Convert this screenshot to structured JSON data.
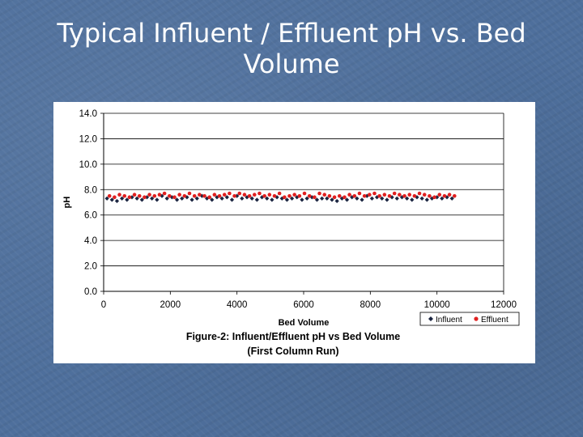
{
  "slide": {
    "title_line1": "Typical Influent / Effluent pH vs. Bed",
    "title_line2": "Volume"
  },
  "chart_data": {
    "type": "scatter",
    "xlabel": "Bed Volume",
    "ylabel": "pH",
    "xlim": [
      0,
      12000
    ],
    "ylim": [
      0,
      14
    ],
    "xticks": [
      "0",
      "2000",
      "4000",
      "6000",
      "8000",
      "10000",
      "12000"
    ],
    "yticks": [
      "0.0",
      "2.0",
      "4.0",
      "6.0",
      "8.0",
      "10.0",
      "12.0",
      "14.0"
    ],
    "grid": "horizontal",
    "legend_position": "bottom-right",
    "caption_line1": "Figure-2: Influent/Effluent pH vs Bed Volume",
    "caption_line2": "(First Column Run)",
    "series": [
      {
        "name": "Influent",
        "color": "#1a2440",
        "marker": "diamond",
        "x": [
          100,
          250,
          400,
          550,
          700,
          850,
          1000,
          1150,
          1300,
          1450,
          1600,
          1750,
          1900,
          2050,
          2200,
          2350,
          2500,
          2650,
          2800,
          2950,
          3100,
          3250,
          3400,
          3550,
          3700,
          3850,
          4000,
          4150,
          4300,
          4450,
          4600,
          4750,
          4900,
          5050,
          5200,
          5350,
          5500,
          5650,
          5800,
          5950,
          6100,
          6250,
          6400,
          6550,
          6700,
          6850,
          7000,
          7150,
          7300,
          7450,
          7600,
          7750,
          7900,
          8050,
          8200,
          8350,
          8500,
          8650,
          8800,
          8950,
          9100,
          9250,
          9400,
          9550,
          9700,
          9850,
          10000,
          10150,
          10300,
          10450
        ],
        "y": [
          7.3,
          7.2,
          7.1,
          7.3,
          7.2,
          7.4,
          7.3,
          7.2,
          7.4,
          7.3,
          7.2,
          7.5,
          7.3,
          7.4,
          7.2,
          7.3,
          7.4,
          7.2,
          7.3,
          7.5,
          7.3,
          7.2,
          7.4,
          7.3,
          7.4,
          7.2,
          7.5,
          7.3,
          7.4,
          7.3,
          7.2,
          7.4,
          7.3,
          7.2,
          7.4,
          7.3,
          7.2,
          7.3,
          7.4,
          7.2,
          7.3,
          7.4,
          7.2,
          7.3,
          7.3,
          7.2,
          7.1,
          7.3,
          7.2,
          7.4,
          7.3,
          7.2,
          7.5,
          7.3,
          7.4,
          7.3,
          7.2,
          7.4,
          7.3,
          7.4,
          7.3,
          7.2,
          7.4,
          7.3,
          7.2,
          7.3,
          7.4,
          7.3,
          7.4,
          7.3
        ]
      },
      {
        "name": "Effluent",
        "color": "#e02020",
        "marker": "circle",
        "x": [
          175,
          325,
          475,
          625,
          775,
          925,
          1075,
          1225,
          1375,
          1525,
          1675,
          1825,
          1975,
          2125,
          2275,
          2425,
          2575,
          2725,
          2875,
          3025,
          3175,
          3325,
          3475,
          3625,
          3775,
          3925,
          4075,
          4225,
          4375,
          4525,
          4675,
          4825,
          4975,
          5125,
          5275,
          5425,
          5575,
          5725,
          5875,
          6025,
          6175,
          6325,
          6475,
          6625,
          6775,
          6925,
          7075,
          7225,
          7375,
          7525,
          7675,
          7825,
          7975,
          8125,
          8275,
          8425,
          8575,
          8725,
          8875,
          9025,
          9175,
          9325,
          9475,
          9625,
          9775,
          9925,
          10075,
          10225,
          10375,
          10525
        ],
        "y": [
          7.5,
          7.4,
          7.6,
          7.5,
          7.4,
          7.6,
          7.5,
          7.4,
          7.6,
          7.5,
          7.6,
          7.7,
          7.5,
          7.4,
          7.6,
          7.5,
          7.7,
          7.5,
          7.6,
          7.5,
          7.4,
          7.6,
          7.5,
          7.6,
          7.7,
          7.5,
          7.7,
          7.6,
          7.5,
          7.6,
          7.7,
          7.5,
          7.6,
          7.5,
          7.7,
          7.4,
          7.5,
          7.6,
          7.5,
          7.7,
          7.5,
          7.4,
          7.7,
          7.6,
          7.5,
          7.4,
          7.5,
          7.4,
          7.6,
          7.5,
          7.7,
          7.5,
          7.6,
          7.7,
          7.5,
          7.6,
          7.5,
          7.7,
          7.6,
          7.5,
          7.6,
          7.5,
          7.7,
          7.6,
          7.5,
          7.4,
          7.6,
          7.5,
          7.6,
          7.5
        ]
      }
    ]
  }
}
